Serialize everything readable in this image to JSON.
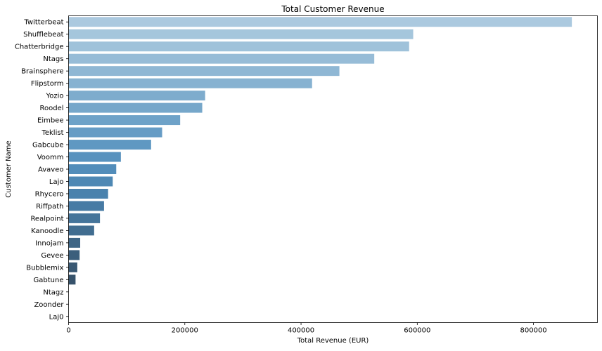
{
  "chart_data": {
    "type": "bar",
    "orientation": "horizontal",
    "title": "Total Customer Revenue",
    "xlabel": "Total Revenue (EUR)",
    "ylabel": "Customer Name",
    "xlim": [
      0,
      910000
    ],
    "xticks": [
      0,
      200000,
      400000,
      600000,
      800000
    ],
    "xtick_labels": [
      "0",
      "200000",
      "400000",
      "600000",
      "800000"
    ],
    "grid": false,
    "palette": "Blues_d",
    "categories": [
      "Twitterbeat",
      "Shufflebeat",
      "Chatterbridge",
      "Ntags",
      "Brainsphere",
      "Flipstorm",
      "Yozio",
      "Roodel",
      "Eimbee",
      "Teklist",
      "Gabcube",
      "Voomm",
      "Avaveo",
      "Lajo",
      "Rhycero",
      "Riffpath",
      "Realpoint",
      "Kanoodle",
      "Innojam",
      "Gevee",
      "Bubblemix",
      "Gabtune",
      "Ntagz",
      "Zoonder",
      "Laj0"
    ],
    "values": [
      866000,
      593000,
      586000,
      526000,
      466000,
      419000,
      235000,
      230000,
      192000,
      161000,
      142000,
      90000,
      82000,
      76000,
      68000,
      61000,
      54000,
      44000,
      20000,
      19000,
      15000,
      12000,
      0,
      0,
      0
    ],
    "colors": [
      "#abc9df",
      "#a5c6dc",
      "#9fc2da",
      "#97bcd7",
      "#8fb7d4",
      "#87b2d1",
      "#7eaccd",
      "#76a7ca",
      "#6ea2c8",
      "#669cc5",
      "#5f98c2",
      "#5892be",
      "#528dba",
      "#4e88b4",
      "#4a82ad",
      "#477ba4",
      "#44749a",
      "#416d90",
      "#3f6686",
      "#3c5f7c",
      "#395873",
      "#36526b",
      "#344b62",
      "#31455a",
      "#2f4053"
    ]
  }
}
